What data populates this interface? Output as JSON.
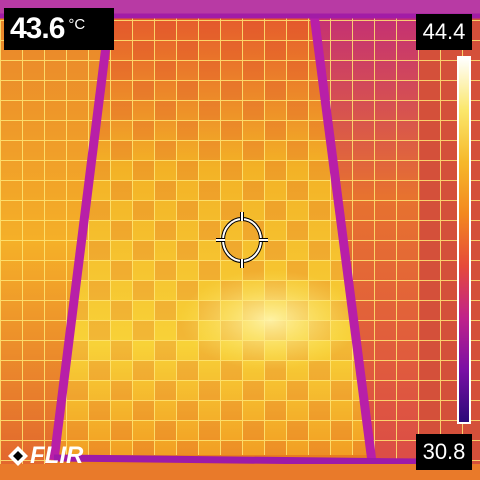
{
  "camera": {
    "brand": "FLIR",
    "spot_temperature": "43.6",
    "unit": "°C",
    "scale_max": "44.4",
    "scale_min": "30.8",
    "palette": [
      "#2a0a78",
      "#7a0fa4",
      "#c0228a",
      "#e64a3a",
      "#f3881f",
      "#f6b82a",
      "#fbe76b",
      "#ffffff"
    ]
  },
  "scene": {
    "subject": "solar panels",
    "colors": {
      "background": "#f5a11e",
      "panel_hot": "#f9cf3c",
      "panel_warm": "#e84f2e",
      "frame": "#b81fa8",
      "grid_line": "#ffe774"
    }
  }
}
